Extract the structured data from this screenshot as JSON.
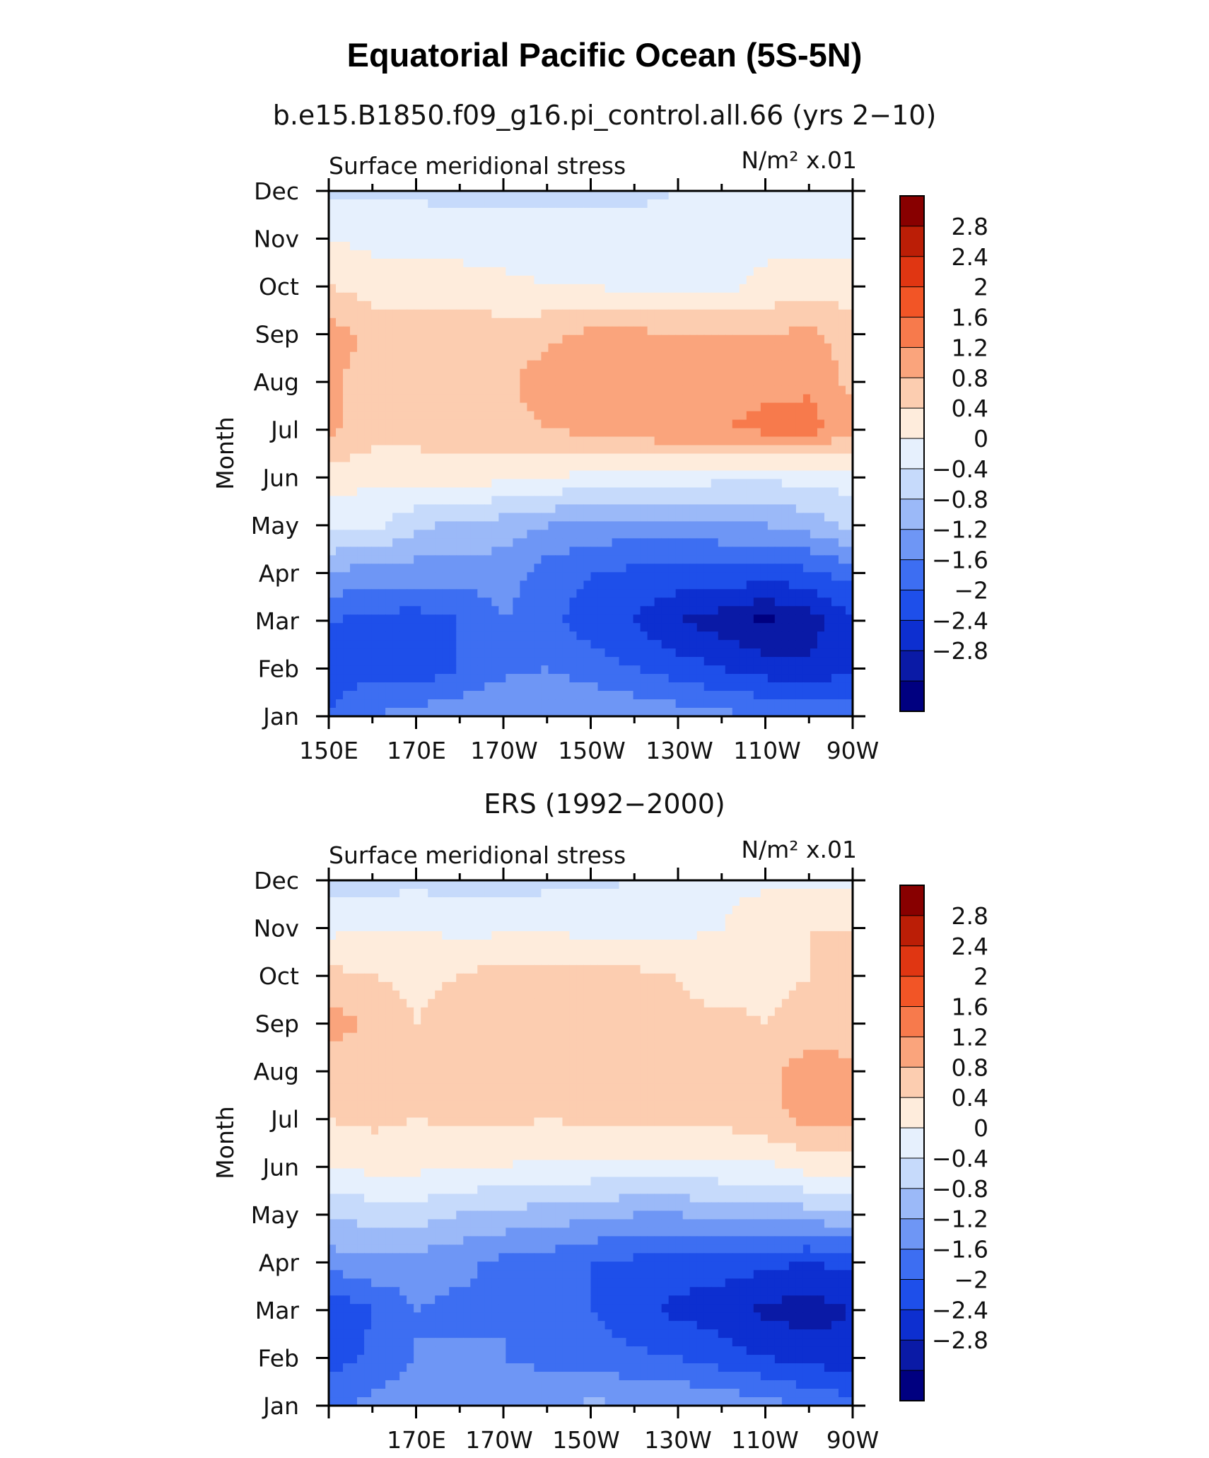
{
  "title": "Equatorial Pacific Ocean (5S-5N)",
  "palette": [
    "#000080",
    "#0a1aa6",
    "#0d2fd0",
    "#1e4fea",
    "#3d6ef2",
    "#6e96f5",
    "#9bb9f8",
    "#c6dafb",
    "#e6f0fd",
    "#feecdc",
    "#fccdb0",
    "#faa47c",
    "#f77a4c",
    "#f25526",
    "#e03612",
    "#bb1e06",
    "#880000"
  ],
  "chart_data": [
    {
      "type": "heatmap",
      "subtitle": "b.e15.B1850.f09_g16.pi_control.all.66 (yrs 2−10)",
      "left_label": "Surface meridional stress",
      "right_label": "N/m² x.01",
      "ylabel": "Month",
      "xlabel": "",
      "x_tick_labels": [
        "150E",
        "170E",
        "170W",
        "150W",
        "130W",
        "110W",
        "90W"
      ],
      "y_tick_labels": [
        "Jan",
        "Feb",
        "Mar",
        "Apr",
        "May",
        "Jun",
        "Jul",
        "Aug",
        "Sep",
        "Oct",
        "Nov",
        "Dec"
      ],
      "colorbar_labels": [
        "2.8",
        "2.4",
        "2",
        "1.6",
        "1.2",
        "0.8",
        "0.4",
        "0",
        "−0.4",
        "−0.8",
        "−1.2",
        "−1.6",
        "−2",
        "−2.4",
        "−2.8"
      ],
      "x": [
        150,
        160,
        170,
        180,
        190,
        200,
        210,
        220,
        230,
        240,
        250,
        260,
        270
      ],
      "y": [
        "Jan",
        "Feb",
        "Mar",
        "Apr",
        "May",
        "Jun",
        "Jul",
        "Aug",
        "Sep",
        "Oct",
        "Nov",
        "Dec"
      ],
      "values": [
        [
          -1.6,
          -1.2,
          -1.0,
          -0.9,
          -0.8,
          -0.8,
          -0.8,
          -0.9,
          -1.0,
          -1.1,
          -1.2,
          -1.3,
          -1.4
        ],
        [
          -1.8,
          -1.7,
          -1.9,
          -1.6,
          -1.3,
          -1.2,
          -1.4,
          -1.6,
          -1.8,
          -2.0,
          -2.2,
          -2.3,
          -2.0
        ],
        [
          -1.6,
          -1.7,
          -1.8,
          -1.6,
          -1.2,
          -1.5,
          -1.8,
          -2.0,
          -2.4,
          -2.6,
          -2.9,
          -2.6,
          -2.1
        ],
        [
          -0.8,
          -1.0,
          -1.0,
          -1.0,
          -1.0,
          -1.4,
          -1.6,
          -1.7,
          -1.7,
          -1.7,
          -1.8,
          -1.7,
          -1.4
        ],
        [
          0.1,
          0.1,
          -0.3,
          -0.5,
          -0.6,
          -0.8,
          -0.9,
          -1.0,
          -1.0,
          -0.9,
          -0.8,
          -0.6,
          -0.3
        ],
        [
          0.6,
          0.5,
          0.5,
          0.6,
          0.5,
          0.4,
          0.3,
          0.2,
          0.2,
          0.1,
          0.1,
          0.1,
          0.2
        ],
        [
          1.3,
          1.0,
          1.0,
          1.0,
          1.1,
          1.2,
          1.3,
          1.4,
          1.6,
          1.6,
          1.7,
          1.8,
          1.3
        ],
        [
          1.3,
          1.0,
          0.9,
          1.0,
          1.1,
          1.4,
          1.4,
          1.4,
          1.4,
          1.4,
          1.5,
          1.5,
          1.1
        ],
        [
          1.4,
          1.1,
          1.0,
          1.0,
          1.0,
          1.1,
          1.3,
          1.3,
          1.2,
          1.2,
          1.2,
          1.3,
          1.0
        ],
        [
          0.8,
          0.6,
          0.6,
          0.6,
          0.5,
          0.4,
          0.4,
          0.3,
          0.3,
          0.3,
          0.5,
          0.6,
          0.6
        ],
        [
          0.4,
          0.3,
          0.3,
          0.2,
          0.2,
          0.2,
          0.2,
          0.2,
          0.2,
          0.2,
          0.3,
          0.3,
          0.3
        ],
        [
          -0.1,
          -0.1,
          -0.1,
          -0.1,
          -0.1,
          -0.1,
          -0.1,
          -0.1,
          0.0,
          0.0,
          0.1,
          0.1,
          0.1
        ]
      ]
    },
    {
      "type": "heatmap",
      "subtitle": "ERS (1992−2000)",
      "left_label": "Surface meridional stress",
      "right_label": "N/m² x.01",
      "ylabel": "Month",
      "xlabel": "",
      "x_tick_labels": [
        "170E",
        "170W",
        "150W",
        "130W",
        "110W",
        "90W"
      ],
      "y_tick_labels": [
        "Jan",
        "Feb",
        "Mar",
        "Apr",
        "May",
        "Jun",
        "Jul",
        "Aug",
        "Sep",
        "Oct",
        "Nov",
        "Dec"
      ],
      "colorbar_labels": [
        "2.8",
        "2.4",
        "2",
        "1.6",
        "1.2",
        "0.8",
        "0.4",
        "0",
        "−0.4",
        "−0.8",
        "−1.2",
        "−1.6",
        "−2",
        "−2.4",
        "−2.8"
      ],
      "x": [
        150,
        160,
        170,
        180,
        190,
        200,
        210,
        220,
        230,
        240,
        250,
        260,
        270
      ],
      "y": [
        "Jan",
        "Feb",
        "Mar",
        "Apr",
        "May",
        "Jun",
        "Jul",
        "Aug",
        "Sep",
        "Oct",
        "Nov",
        "Dec"
      ],
      "values": [
        [
          -1.3,
          -1.1,
          -0.9,
          -1.1,
          -0.9,
          -0.9,
          -0.7,
          -0.8,
          -0.8,
          -0.9,
          -1.0,
          -1.3,
          -1.4
        ],
        [
          -1.8,
          -1.5,
          -1.2,
          -1.1,
          -1.2,
          -1.3,
          -1.4,
          -1.5,
          -1.6,
          -1.8,
          -2.0,
          -2.1,
          -2.3
        ],
        [
          -2.0,
          -1.6,
          -1.2,
          -1.3,
          -1.2,
          -1.4,
          -1.6,
          -1.9,
          -2.1,
          -2.2,
          -2.5,
          -2.6,
          -2.4
        ],
        [
          -1.0,
          -0.9,
          -1.0,
          -1.1,
          -1.3,
          -1.4,
          -1.6,
          -1.7,
          -1.8,
          -1.8,
          -1.9,
          -2.0,
          -1.9
        ],
        [
          -0.4,
          -0.2,
          -0.2,
          -0.4,
          -0.5,
          -0.6,
          -0.7,
          -0.8,
          -0.8,
          -0.7,
          -0.6,
          -0.6,
          -0.4
        ],
        [
          0.4,
          0.5,
          0.5,
          0.4,
          0.4,
          0.3,
          0.3,
          0.3,
          0.3,
          0.3,
          0.3,
          0.6,
          0.6
        ],
        [
          0.8,
          0.9,
          0.8,
          0.9,
          0.9,
          0.8,
          0.9,
          0.9,
          0.9,
          0.9,
          1.1,
          1.3,
          1.3
        ],
        [
          0.9,
          1.0,
          1.0,
          0.9,
          1.0,
          0.9,
          1.0,
          1.0,
          1.0,
          1.0,
          1.1,
          1.4,
          1.3
        ],
        [
          1.4,
          1.1,
          0.8,
          1.0,
          1.0,
          1.0,
          1.0,
          1.0,
          0.9,
          0.9,
          0.8,
          0.9,
          1.0
        ],
        [
          0.9,
          0.8,
          0.7,
          0.8,
          1.0,
          1.0,
          0.9,
          0.9,
          0.8,
          0.6,
          0.7,
          0.8,
          1.1
        ],
        [
          0.3,
          0.4,
          0.4,
          0.3,
          0.3,
          0.3,
          0.3,
          0.3,
          0.3,
          0.4,
          0.8,
          0.8,
          0.8
        ],
        [
          -0.2,
          -0.2,
          -0.1,
          -0.2,
          -0.2,
          -0.1,
          -0.1,
          0.0,
          0.1,
          0.2,
          0.3,
          0.3,
          0.3
        ]
      ]
    }
  ]
}
